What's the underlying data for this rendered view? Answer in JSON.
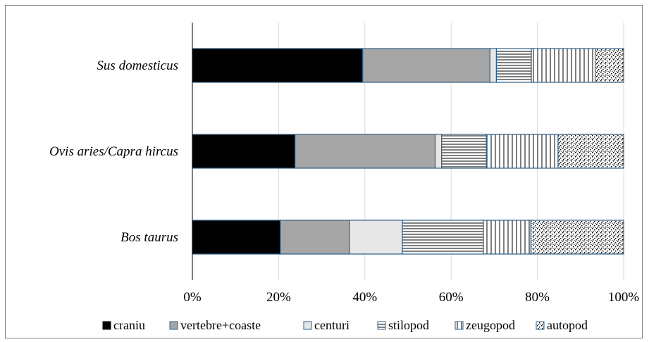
{
  "chart_data": {
    "type": "bar",
    "orientation": "horizontal",
    "stacked": "percent",
    "categories": [
      "Sus domesticus",
      "Ovis aries/Capra hircus",
      "Bos taurus"
    ],
    "series": [
      {
        "name": "craniu",
        "values": [
          39.5,
          23.8,
          20.4
        ],
        "color": "#000000",
        "pattern": "solid"
      },
      {
        "name": "vertebre+coaste",
        "values": [
          29.5,
          32.5,
          16.0
        ],
        "color": "#a6a6a6",
        "pattern": "solid"
      },
      {
        "name": "centuri",
        "values": [
          1.5,
          1.5,
          12.3
        ],
        "color": "#e7e7e7",
        "pattern": "solid"
      },
      {
        "name": "stilopod",
        "values": [
          8.1,
          10.4,
          18.8
        ],
        "color": "#ffffff",
        "pattern": "horizontal-lines"
      },
      {
        "name": "zeugopod",
        "values": [
          14.8,
          16.6,
          11.0
        ],
        "color": "#ffffff",
        "pattern": "vertical-lines"
      },
      {
        "name": "autopod",
        "values": [
          6.6,
          15.2,
          21.5
        ],
        "color": "#ffffff",
        "pattern": "dots"
      }
    ],
    "xlim": [
      0,
      100
    ],
    "xticks": [
      "0%",
      "20%",
      "40%",
      "60%",
      "80%",
      "100%"
    ],
    "grid": "vertical",
    "legend_position": "bottom",
    "outline_color": "#2f5f87"
  }
}
